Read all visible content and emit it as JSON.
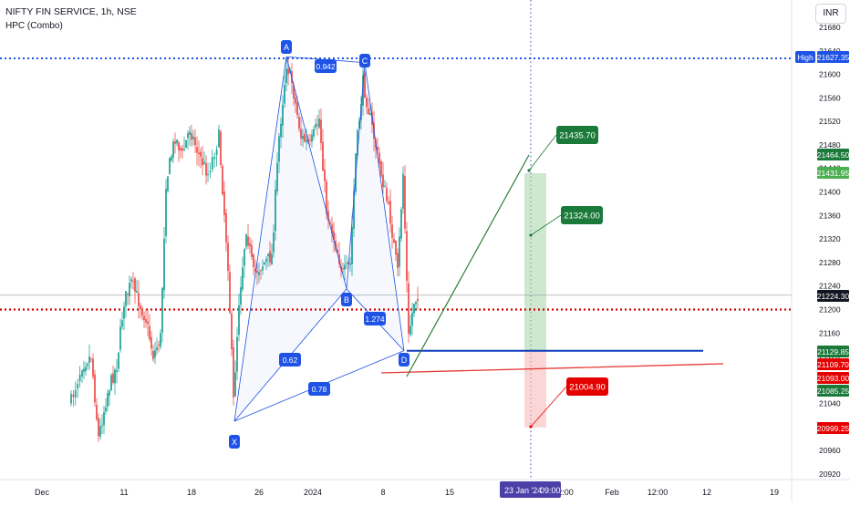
{
  "header": {
    "symbol_line": "NIFTY FIN SERVICE, 1h, NSE",
    "indicator": "HPC (Combo)",
    "currency": "INR"
  },
  "colors": {
    "up": "#26a69a",
    "down": "#ef5350",
    "pattern": "#1e53e5",
    "current_price": "#131722",
    "high_line": "#1e53e5",
    "red_level": "#d50000",
    "target_green": "#1b7a3a",
    "stop_red": "#e50000"
  },
  "chart_data": {
    "type": "candlestick",
    "ylim": [
      20920,
      21680
    ],
    "price_ticks": [
      21680,
      21640,
      21600,
      21560,
      21520,
      21480,
      21440,
      21400,
      21360,
      21320,
      21280,
      21240,
      21200,
      21160,
      21120,
      21080,
      21040,
      21000,
      20960,
      20920
    ],
    "x_ticks": [
      "Dec",
      "11",
      "18",
      "26",
      "2024",
      "8",
      "15",
      "23 Jan '24",
      "09:00",
      "2:00",
      "Feb",
      "12:00",
      "12",
      "19"
    ],
    "price_labels": [
      {
        "text": "High",
        "value": "21627.35",
        "kind": "high"
      },
      {
        "text": "",
        "value": "21464.50",
        "kind": "green"
      },
      {
        "text": "",
        "value": "21431.95",
        "kind": "green-light"
      },
      {
        "text": "",
        "value": "21224.30",
        "kind": "current"
      },
      {
        "text": "",
        "value": "21129.85",
        "kind": "green"
      },
      {
        "text": "",
        "value": "21109.70",
        "kind": "red"
      },
      {
        "text": "",
        "value": "21093.00",
        "kind": "red"
      },
      {
        "text": "",
        "value": "21085.25",
        "kind": "green"
      },
      {
        "text": "",
        "value": "20999.25",
        "kind": "red"
      }
    ],
    "pattern_points": [
      {
        "label": "X",
        "value": 21010
      },
      {
        "label": "A",
        "value": 21630
      },
      {
        "label": "B",
        "value": 21235
      },
      {
        "label": "C",
        "value": 21620
      },
      {
        "label": "D",
        "value": 21130
      }
    ],
    "ratios": [
      "0.942",
      "1.274",
      "0.62",
      "0.78"
    ],
    "targets": [
      {
        "text": "21435.70",
        "kind": "green"
      },
      {
        "text": "21324.00",
        "kind": "green"
      },
      {
        "text": "21004.90",
        "kind": "red"
      }
    ],
    "levels": {
      "high": 21627.35,
      "current": 21224.3,
      "red_dotted": 21200,
      "blue_line": 21129.85,
      "target_zone_top": 21431.95,
      "stop_zone_bottom": 20999.25
    },
    "candles": []
  }
}
